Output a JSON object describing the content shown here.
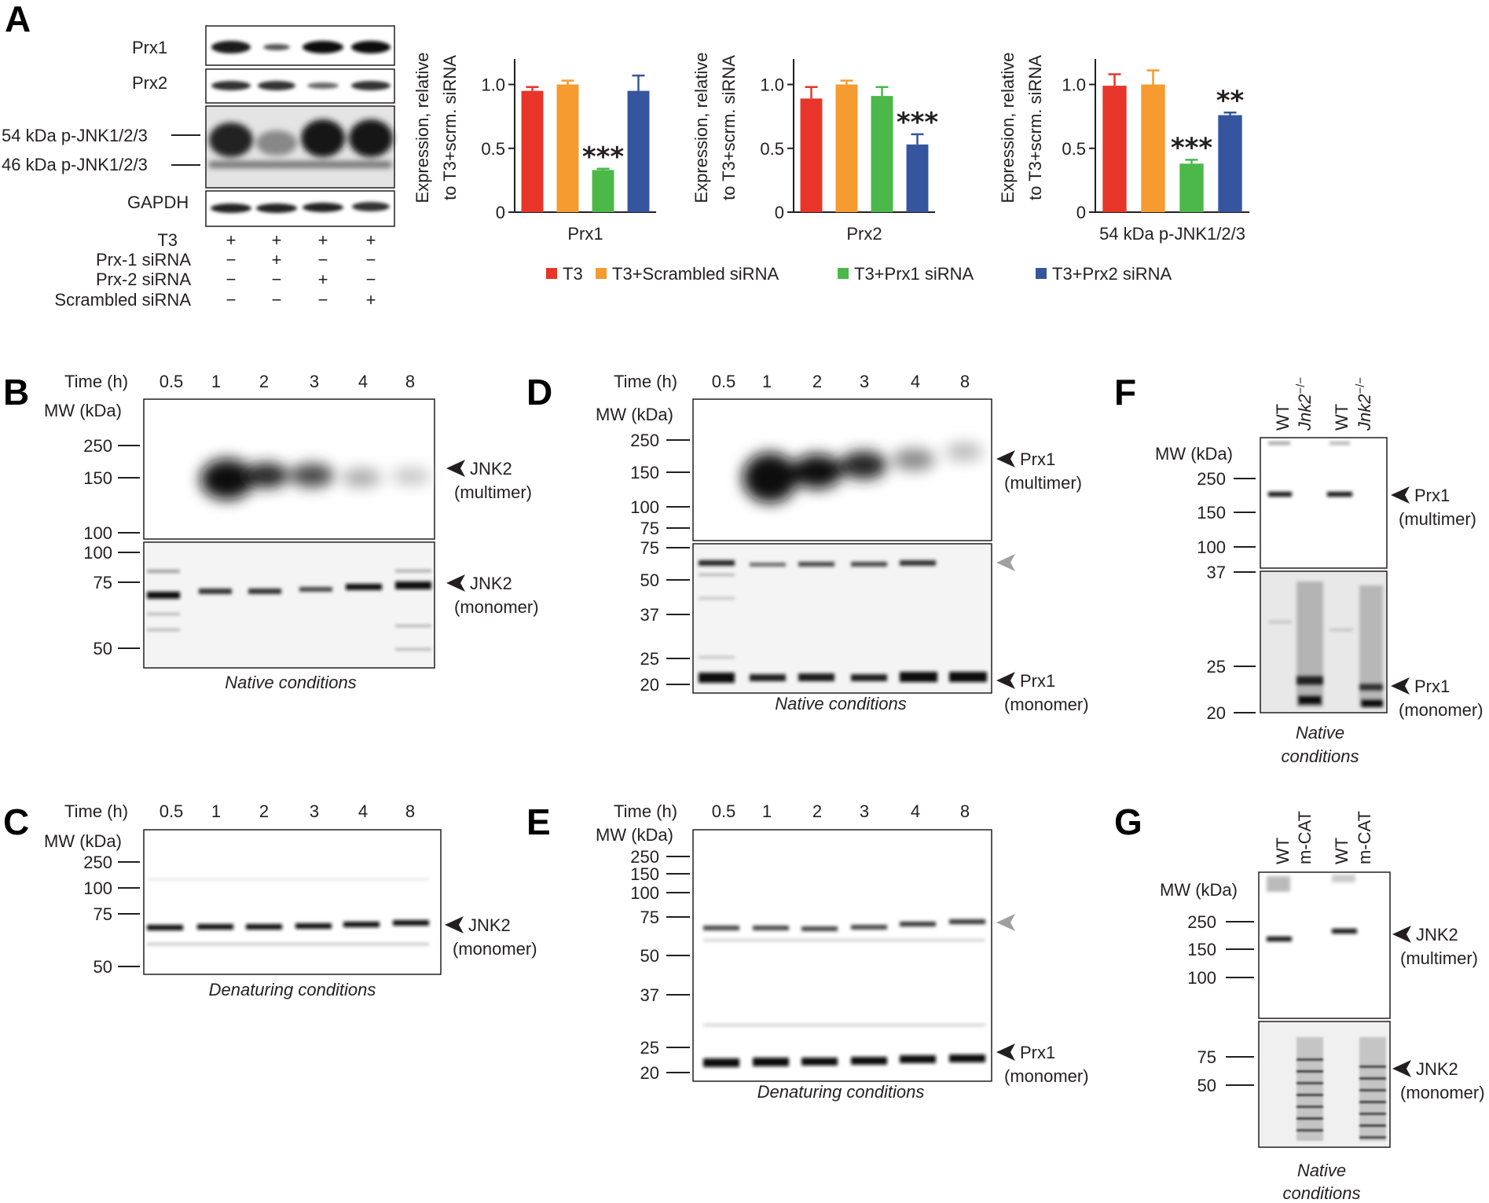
{
  "colors": {
    "T3": "#e8352a",
    "scrambled": "#f59b30",
    "prx1": "#4bb849",
    "prx2": "#35569e"
  },
  "panel_a": {
    "letter": "A",
    "blot_rows": [
      "Prx1",
      "Prx2",
      "54 kDa p-JNK1/2/3",
      "46 kDa p-JNK1/2/3",
      "GAPDH"
    ],
    "treatments": [
      {
        "name": "T3",
        "signs": [
          "+",
          "+",
          "+",
          "+"
        ]
      },
      {
        "name": "Prx-1 siRNA",
        "signs": [
          "−",
          "+",
          "−",
          "−"
        ]
      },
      {
        "name": "Prx-2 siRNA",
        "signs": [
          "−",
          "−",
          "+",
          "−"
        ]
      },
      {
        "name": "Scrambled siRNA",
        "signs": [
          "−",
          "−",
          "−",
          "+"
        ]
      }
    ],
    "ylabel_1": "Expression, relative",
    "ylabel_2": "to T3+scrm. siRNA",
    "legend": [
      "T3",
      "T3+Scrambled siRNA",
      "T3+Prx1 siRNA",
      "T3+Prx2 siRNA"
    ]
  },
  "chart_data": [
    {
      "type": "bar",
      "title": "",
      "xlabel": "Prx1",
      "ylabel": "Expression, relative to T3+scrm. siRNA",
      "ylim": [
        0,
        1.2
      ],
      "categories": [
        "T3",
        "T3+Scrambled siRNA",
        "T3+Prx1 siRNA",
        "T3+Prx2 siRNA"
      ],
      "values": [
        0.95,
        1.0,
        0.33,
        0.95
      ],
      "errors": [
        0.03,
        0.03,
        0.01,
        0.12
      ],
      "yticks": [
        "0",
        "0.5",
        "1.0"
      ],
      "annotations": [
        "",
        "",
        "***",
        ""
      ]
    },
    {
      "type": "bar",
      "title": "",
      "xlabel": "Prx2",
      "ylabel": "Expression, relative to T3+scrm. siRNA",
      "ylim": [
        0,
        1.2
      ],
      "categories": [
        "T3",
        "T3+Scrambled siRNA",
        "T3+Prx1 siRNA",
        "T3+Prx2 siRNA"
      ],
      "values": [
        0.89,
        1.0,
        0.91,
        0.53
      ],
      "errors": [
        0.09,
        0.03,
        0.07,
        0.08
      ],
      "yticks": [
        "0",
        "0.5",
        "1.0"
      ],
      "annotations": [
        "",
        "",
        "",
        "***"
      ]
    },
    {
      "type": "bar",
      "title": "",
      "xlabel": "54 kDa p-JNK1/2/3",
      "ylabel": "Expression, relative to T3+scrm. siRNA",
      "ylim": [
        0,
        1.2
      ],
      "categories": [
        "T3",
        "T3+Scrambled siRNA",
        "T3+Prx1 siRNA",
        "T3+Prx2 siRNA"
      ],
      "values": [
        0.99,
        1.0,
        0.38,
        0.76
      ],
      "errors": [
        0.09,
        0.11,
        0.03,
        0.02
      ],
      "yticks": [
        "0",
        "0.5",
        "1.0"
      ],
      "annotations": [
        "",
        "",
        "***",
        "**"
      ]
    }
  ],
  "panel_b": {
    "letter": "B",
    "time_label": "Time (h)",
    "times": [
      "0.5",
      "1",
      "2",
      "3",
      "4",
      "8"
    ],
    "mw_label": "MW (kDa)",
    "mw_top": [
      "250",
      "150",
      "100"
    ],
    "mw_bottom": [
      "100",
      "75",
      "50"
    ],
    "arrow_top": [
      "JNK2",
      "(multimer)"
    ],
    "arrow_bottom": [
      "JNK2",
      "(monomer)"
    ],
    "caption": "Native conditions"
  },
  "panel_c": {
    "letter": "C",
    "time_label": "Time (h)",
    "times": [
      "0.5",
      "1",
      "2",
      "3",
      "4",
      "8"
    ],
    "mw_label": "MW (kDa)",
    "mw": [
      "250",
      "100",
      "75",
      "50"
    ],
    "arrow": [
      "JNK2",
      "(monomer)"
    ],
    "caption": "Denaturing conditions"
  },
  "panel_d": {
    "letter": "D",
    "time_label": "Time (h)",
    "times": [
      "0.5",
      "1",
      "2",
      "3",
      "4",
      "8"
    ],
    "mw_label": "MW (kDa)",
    "mw_top": [
      "250",
      "150",
      "100",
      "75"
    ],
    "mw_bottom": [
      "75",
      "50",
      "37",
      "25",
      "20"
    ],
    "arrow_top": [
      "Prx1",
      "(multimer)"
    ],
    "arrow_bottom": [
      "Prx1",
      "(monomer)"
    ],
    "caption": "Native conditions"
  },
  "panel_e": {
    "letter": "E",
    "time_label": "Time (h)",
    "times": [
      "0.5",
      "1",
      "2",
      "3",
      "4",
      "8"
    ],
    "mw_label": "MW (kDa)",
    "mw": [
      "250",
      "150",
      "100",
      "75",
      "50",
      "37",
      "25",
      "20"
    ],
    "arrow": [
      "Prx1",
      "(monomer)"
    ],
    "caption": "Denaturing conditions"
  },
  "panel_f": {
    "letter": "F",
    "lanes": [
      "WT",
      "Jnk2",
      "WT",
      "Jnk2"
    ],
    "lane_sup": "−/−",
    "mw_label": "MW (kDa)",
    "mw_top": [
      "250",
      "150",
      "100"
    ],
    "mw_bottom": [
      "37",
      "25",
      "20"
    ],
    "arrow_top": [
      "Prx1",
      "(multimer)"
    ],
    "arrow_bottom": [
      "Prx1",
      "(monomer)"
    ],
    "caption": [
      "Native",
      "conditions"
    ]
  },
  "panel_g": {
    "letter": "G",
    "lanes": [
      "WT",
      "m-CAT",
      "WT",
      "m-CAT"
    ],
    "mw_label": "MW (kDa)",
    "mw_top": [
      "250",
      "150",
      "100"
    ],
    "mw_bottom": [
      "75",
      "50"
    ],
    "arrow_top": [
      "JNK2",
      "(multimer)"
    ],
    "arrow_bottom": [
      "JNK2",
      "(monomer)"
    ],
    "caption": [
      "Native",
      "conditions"
    ]
  }
}
